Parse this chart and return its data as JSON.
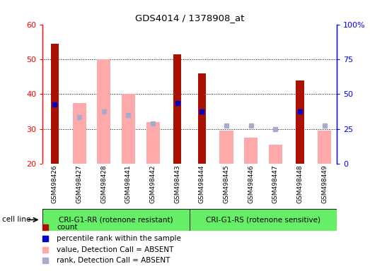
{
  "title": "GDS4014 / 1378908_at",
  "samples": [
    "GSM498426",
    "GSM498427",
    "GSM498428",
    "GSM498441",
    "GSM498442",
    "GSM498443",
    "GSM498444",
    "GSM498445",
    "GSM498446",
    "GSM498447",
    "GSM498448",
    "GSM498449"
  ],
  "group1_label": "CRI-G1-RR (rotenone resistant)",
  "group2_label": "CRI-G1-RS (rotenone sensitive)",
  "group1_count": 6,
  "group2_count": 6,
  "cell_line_label": "cell line",
  "ylim_left": [
    20,
    60
  ],
  "ylim_right": [
    0,
    100
  ],
  "yticks_left": [
    20,
    30,
    40,
    50,
    60
  ],
  "yticks_right": [
    0,
    25,
    50,
    75,
    100
  ],
  "yright_labels": [
    "0",
    "25",
    "50",
    "75",
    "100%"
  ],
  "count_values": [
    54.5,
    0,
    0,
    0,
    0,
    51.5,
    46.0,
    0,
    0,
    0,
    44.0,
    0
  ],
  "rank_values": [
    37.0,
    0,
    0,
    0,
    0,
    37.5,
    35.0,
    0,
    0,
    0,
    35.0,
    0
  ],
  "absent_value_values": [
    0,
    37.5,
    50.0,
    40.0,
    32.0,
    0,
    0,
    29.5,
    27.5,
    25.5,
    0,
    29.5
  ],
  "absent_rank_values": [
    0,
    33.5,
    35.0,
    34.0,
    31.5,
    0,
    0,
    31.0,
    31.0,
    30.0,
    0,
    31.0
  ],
  "count_color": "#aa1100",
  "rank_color": "#0000cc",
  "absent_value_color": "#ffaaaa",
  "absent_rank_color": "#aaaacc",
  "background_gray": "#d3d3d3",
  "background_green": "#66ee66",
  "ybase": 20
}
